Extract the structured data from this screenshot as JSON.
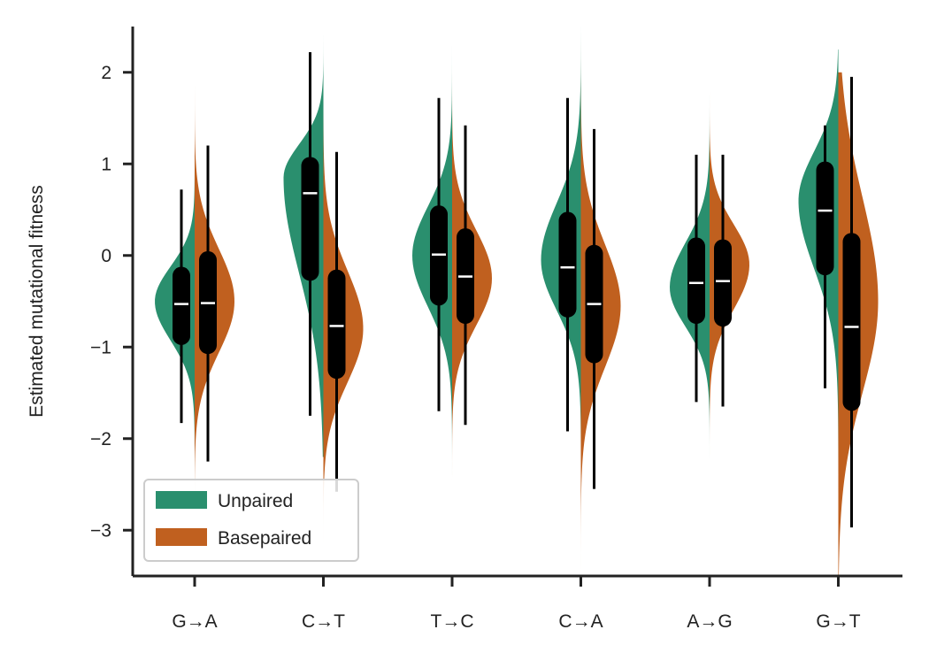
{
  "chart_data": {
    "type": "violin",
    "categories": [
      "G→A",
      "C→T",
      "T→C",
      "C→A",
      "A→G",
      "G→T"
    ],
    "ylabel": "Estimated mutational fitness",
    "xlabel": "",
    "ylim": [
      -3.5,
      2.5
    ],
    "yticks": [
      {
        "value": 2,
        "label": "2"
      },
      {
        "value": 1,
        "label": "1"
      },
      {
        "value": 0,
        "label": "0"
      },
      {
        "value": -1,
        "label": "−1"
      },
      {
        "value": -2,
        "label": "−2"
      },
      {
        "value": -3,
        "label": "−3"
      }
    ],
    "grid": false,
    "legend_position": "bottom-left",
    "series": [
      {
        "name": "Unpaired",
        "side": "left",
        "color": "#2a8f6e",
        "stats": [
          {
            "median": -0.53,
            "q1": -0.88,
            "q3": -0.22,
            "whisker_low": -1.83,
            "whisker_high": 0.72,
            "extent": [
              -3.0,
              2.5
            ],
            "peak": -0.5
          },
          {
            "median": 0.68,
            "q1": -0.18,
            "q3": 0.98,
            "whisker_low": -1.75,
            "whisker_high": 2.22,
            "extent": [
              -2.2,
              2.5
            ],
            "peak": 0.85
          },
          {
            "median": 0.01,
            "q1": -0.45,
            "q3": 0.45,
            "whisker_low": -1.7,
            "whisker_high": 1.72,
            "extent": [
              -3.5,
              2.5
            ],
            "peak": 0.0
          },
          {
            "median": -0.13,
            "q1": -0.58,
            "q3": 0.38,
            "whisker_low": -1.92,
            "whisker_high": 1.72,
            "extent": [
              -3.5,
              2.5
            ],
            "peak": -0.05
          },
          {
            "median": -0.3,
            "q1": -0.65,
            "q3": 0.1,
            "whisker_low": -1.6,
            "whisker_high": 1.1,
            "extent": [
              -3.0,
              2.5
            ],
            "peak": -0.35
          },
          {
            "median": 0.49,
            "q1": -0.12,
            "q3": 0.93,
            "whisker_low": -1.45,
            "whisker_high": 1.42,
            "extent": [
              -3.5,
              2.25
            ],
            "peak": 0.6
          }
        ]
      },
      {
        "name": "Basepaired",
        "side": "right",
        "color": "#c0601f",
        "stats": [
          {
            "median": -0.52,
            "q1": -0.98,
            "q3": -0.05,
            "whisker_low": -2.25,
            "whisker_high": 1.2,
            "extent": [
              -3.2,
              1.85
            ],
            "peak": -0.5
          },
          {
            "median": -0.77,
            "q1": -1.25,
            "q3": -0.25,
            "whisker_low": -2.58,
            "whisker_high": 1.13,
            "extent": [
              -3.2,
              2.3
            ],
            "peak": -0.8
          },
          {
            "median": -0.23,
            "q1": -0.65,
            "q3": 0.2,
            "whisker_low": -1.85,
            "whisker_high": 1.42,
            "extent": [
              -3.5,
              2.5
            ],
            "peak": -0.25
          },
          {
            "median": -0.53,
            "q1": -1.08,
            "q3": 0.02,
            "whisker_low": -2.55,
            "whisker_high": 1.38,
            "extent": [
              -3.5,
              2.5
            ],
            "peak": -0.55
          },
          {
            "median": -0.28,
            "q1": -0.68,
            "q3": 0.08,
            "whisker_low": -1.65,
            "whisker_high": 1.1,
            "extent": [
              -3.1,
              2.5
            ],
            "peak": -0.1
          },
          {
            "median": -0.78,
            "q1": -1.6,
            "q3": 0.15,
            "whisker_low": -2.97,
            "whisker_high": 1.95,
            "extent": [
              -3.5,
              2.0
            ],
            "peak": -0.5
          }
        ]
      }
    ]
  }
}
